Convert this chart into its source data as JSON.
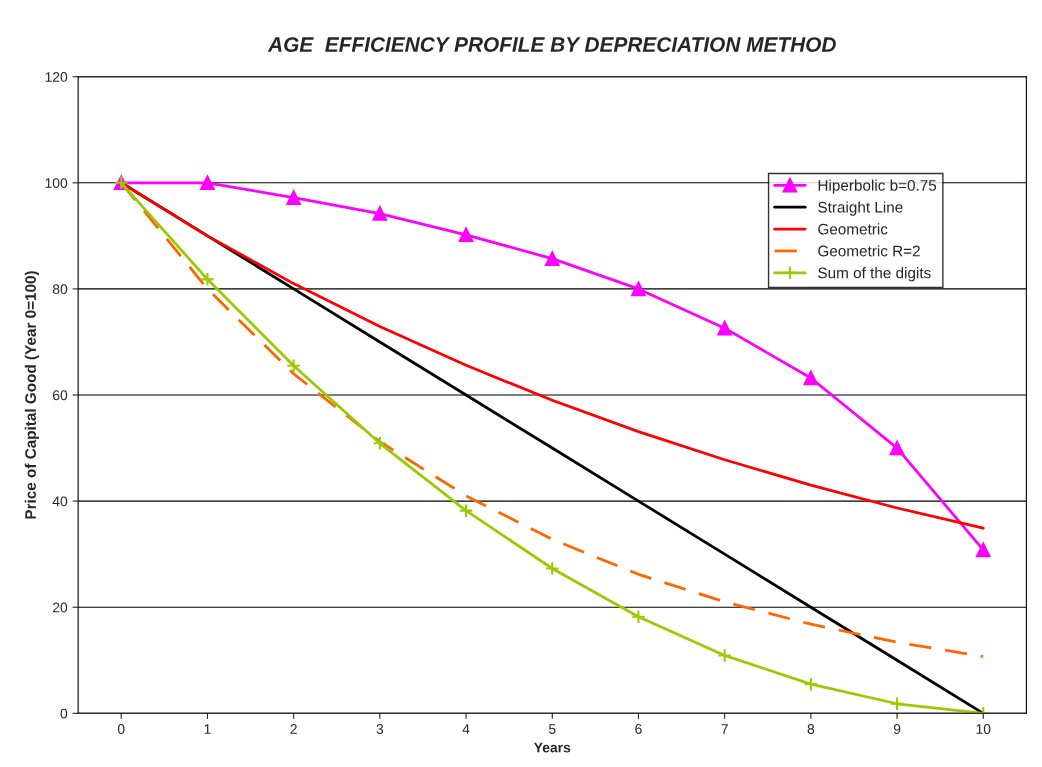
{
  "chart_data": {
    "type": "line",
    "title": "AGE  EFFICIENCY PROFILE BY DEPRECIATION METHOD",
    "xlabel": "Years",
    "ylabel": "Price of Capital Good (Year 0=100)",
    "categories": [
      "0",
      "1",
      "2",
      "3",
      "4",
      "5",
      "6",
      "7",
      "8",
      "9",
      "10"
    ],
    "series": [
      {
        "name": "Hiperbolic b=0.75",
        "color": "#ff00ff",
        "marker": "triangle",
        "values": [
          100,
          100,
          97.2,
          94.2,
          90.2,
          85.7,
          80,
          72.6,
          63.2,
          50,
          30.8
        ]
      },
      {
        "name": "Straight Line",
        "color": "#000000",
        "marker": "none",
        "values": [
          100,
          90,
          80,
          70,
          60,
          50,
          40,
          30,
          20,
          10,
          0
        ]
      },
      {
        "name": "Geometric",
        "color": "#ff0000",
        "marker": "none",
        "values": [
          100,
          90,
          81,
          72.9,
          65.6,
          59,
          53.1,
          47.8,
          43,
          38.7,
          34.9
        ]
      },
      {
        "name": "Geometric R=2",
        "color": "#ff6600",
        "marker": "none",
        "line_style": "dashed",
        "values": [
          100,
          80,
          64,
          51.2,
          41,
          32.8,
          26.2,
          21,
          16.8,
          13.4,
          10.7
        ]
      },
      {
        "name": "Sum of the digits",
        "color": "#99cc00",
        "marker": "cross",
        "values": [
          100,
          81.8,
          65.5,
          50.9,
          38.2,
          27.3,
          18.2,
          10.9,
          5.5,
          1.8,
          0
        ]
      }
    ],
    "ylim": [
      0,
      120
    ],
    "yticks": [
      0,
      20,
      40,
      60,
      80,
      100,
      120
    ],
    "grid": "y",
    "legend": "top right"
  }
}
